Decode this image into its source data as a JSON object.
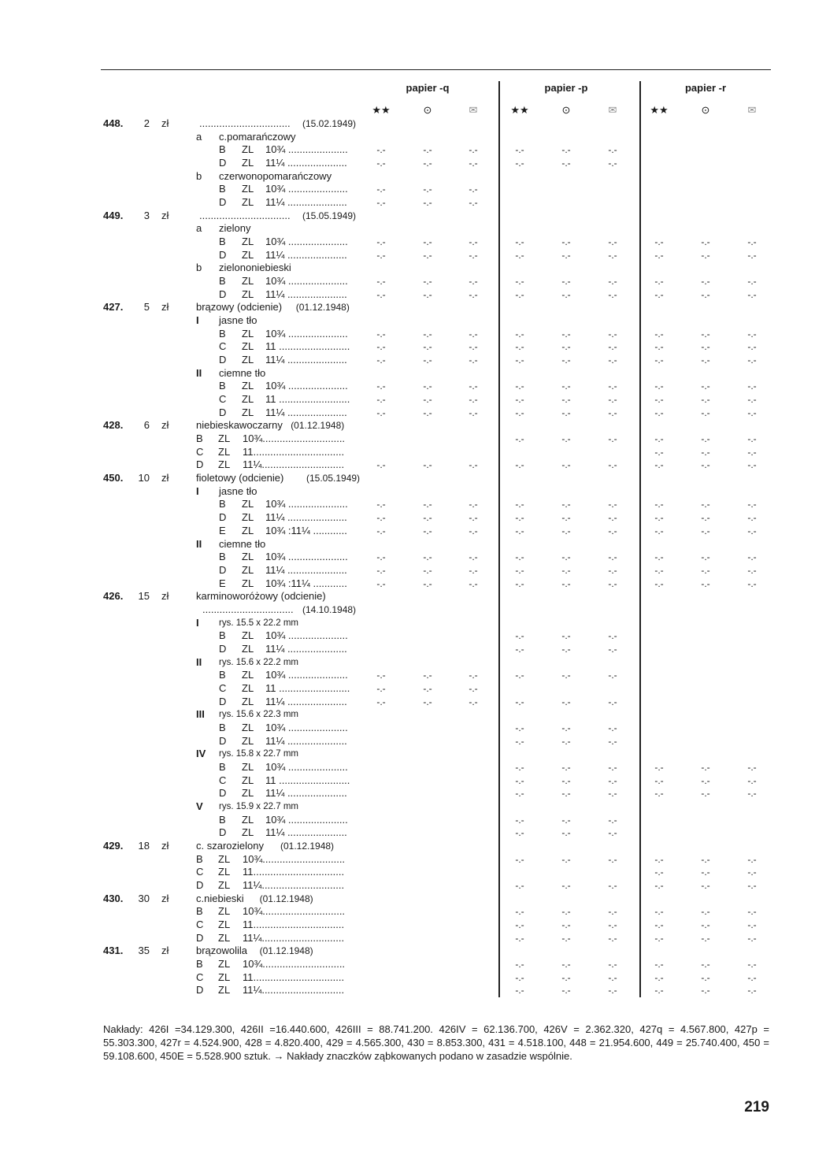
{
  "header": {
    "columns": [
      {
        "label": "papier -q"
      },
      {
        "label": "papier -p"
      },
      {
        "label": "papier -r"
      }
    ],
    "icons": [
      "mint-never-hinged-icon",
      "cancelled-icon",
      "cover-envelope-icon"
    ],
    "icon_glyphs": [
      "★★",
      "⊙",
      "✉"
    ]
  },
  "placeholder": "-.-",
  "rows": [
    {
      "t": "main",
      "num": "448.",
      "val": "2",
      "unit": "zł",
      "text": "",
      "dots": "................................",
      "date": "(15.02.1949)",
      "m": ""
    },
    {
      "t": "sub",
      "l": "a",
      "label": "c.pomarańczowy",
      "m": ""
    },
    {
      "t": "perf",
      "l": "B",
      "z": "ZL",
      "p": "10¾ .....................",
      "m": "qp"
    },
    {
      "t": "perf",
      "l": "D",
      "z": "ZL",
      "p": "11¼ .....................",
      "m": "qp"
    },
    {
      "t": "sub",
      "l": "b",
      "label": "czerwonopomarańczowy",
      "m": ""
    },
    {
      "t": "perf",
      "l": "B",
      "z": "ZL",
      "p": "10¾ .....................",
      "m": "q"
    },
    {
      "t": "perf",
      "l": "D",
      "z": "ZL",
      "p": "11¼ .....................",
      "m": "q"
    },
    {
      "t": "main",
      "num": "449.",
      "val": "3",
      "unit": "zł",
      "text": "",
      "dots": "................................",
      "date": "(15.05.1949)",
      "m": ""
    },
    {
      "t": "sub",
      "l": "a",
      "label": "zielony",
      "m": ""
    },
    {
      "t": "perf",
      "l": "B",
      "z": "ZL",
      "p": "10¾ .....................",
      "m": "qpr"
    },
    {
      "t": "perf",
      "l": "D",
      "z": "ZL",
      "p": "11¼ .....................",
      "m": "qpr"
    },
    {
      "t": "sub",
      "l": "b",
      "label": "zielononiebieski",
      "m": ""
    },
    {
      "t": "perf",
      "l": "B",
      "z": "ZL",
      "p": "10¾ .....................",
      "m": "qpr"
    },
    {
      "t": "perf",
      "l": "D",
      "z": "ZL",
      "p": "11¼ .....................",
      "m": "qpr"
    },
    {
      "t": "main",
      "num": "427.",
      "val": "5",
      "unit": "zł",
      "text": "brązowy (odcienie)",
      "dots": "",
      "date": "(01.12.1948)",
      "m": ""
    },
    {
      "t": "sub",
      "l": "I",
      "bold": true,
      "label": "jasne tło",
      "m": ""
    },
    {
      "t": "perf",
      "l": "B",
      "z": "ZL",
      "p": "10¾ .....................",
      "m": "qpr"
    },
    {
      "t": "perf",
      "l": "C",
      "z": "ZL",
      "p": "11 .........................",
      "m": "qpr"
    },
    {
      "t": "perf",
      "l": "D",
      "z": "ZL",
      "p": "11¼ .....................",
      "m": "qpr"
    },
    {
      "t": "sub",
      "l": "II",
      "bold": true,
      "label": "ciemne tło",
      "m": ""
    },
    {
      "t": "perf",
      "l": "B",
      "z": "ZL",
      "p": "10¾ .....................",
      "m": "qpr"
    },
    {
      "t": "perf",
      "l": "C",
      "z": "ZL",
      "p": "11 .........................",
      "m": "qpr"
    },
    {
      "t": "perf",
      "l": "D",
      "z": "ZL",
      "p": "11¼ .....................",
      "m": "qpr"
    },
    {
      "t": "main",
      "num": "428.",
      "val": "6",
      "unit": "zł",
      "text": "niebieskawoczarny",
      "dots": "",
      "date": "(01.12.1948)",
      "m": ""
    },
    {
      "t": "perf2",
      "l": "B",
      "z": "ZL",
      "p": "10¾.............................",
      "m": "pr"
    },
    {
      "t": "perf2",
      "l": "C",
      "z": "ZL",
      "p": "11................................",
      "m": "r"
    },
    {
      "t": "perf2",
      "l": "D",
      "z": "ZL",
      "p": "11¼.............................",
      "m": "qpr"
    },
    {
      "t": "main",
      "num": "450.",
      "val": "10",
      "unit": "zł",
      "text": "fioletowy (odcienie)",
      "dots": "",
      "date": "(15.05.1949)",
      "m": ""
    },
    {
      "t": "sub",
      "l": "I",
      "bold": true,
      "label": "jasne tło",
      "m": ""
    },
    {
      "t": "perf",
      "l": "B",
      "z": "ZL",
      "p": "10¾ .....................",
      "m": "qpr"
    },
    {
      "t": "perf",
      "l": "D",
      "z": "ZL",
      "p": "11¼ .....................",
      "m": "qpr"
    },
    {
      "t": "perf",
      "l": "E",
      "z": "ZL",
      "p": "10¾ :11¼ ............",
      "m": "qpr"
    },
    {
      "t": "sub",
      "l": "II",
      "bold": true,
      "label": "ciemne tło",
      "m": ""
    },
    {
      "t": "perf",
      "l": "B",
      "z": "ZL",
      "p": "10¾ .....................",
      "m": "qpr"
    },
    {
      "t": "perf",
      "l": "D",
      "z": "ZL",
      "p": "11¼ .....................",
      "m": "qpr"
    },
    {
      "t": "perf",
      "l": "E",
      "z": "ZL",
      "p": "10¾ :11¼ ............",
      "m": "qpr"
    },
    {
      "t": "main",
      "num": "426.",
      "val": "15",
      "unit": "zł",
      "text": "karminoworóżowy (odcienie)",
      "dots": "",
      "date": "",
      "m": ""
    },
    {
      "t": "date",
      "dots": "................................",
      "date": "(14.10.1948)",
      "m": ""
    },
    {
      "t": "sub",
      "l": "I",
      "bold": true,
      "small": true,
      "label": "rys. 15.5 x 22.2 mm",
      "m": ""
    },
    {
      "t": "perf",
      "l": "B",
      "z": "ZL",
      "p": "10¾ .....................",
      "m": "p"
    },
    {
      "t": "perf",
      "l": "D",
      "z": "ZL",
      "p": "11¼ .....................",
      "m": "p"
    },
    {
      "t": "sub",
      "l": "II",
      "bold": true,
      "small": true,
      "label": "rys. 15.6 x 22.2 mm",
      "m": ""
    },
    {
      "t": "perf",
      "l": "B",
      "z": "ZL",
      "p": "10¾ .....................",
      "m": "qp"
    },
    {
      "t": "perf",
      "l": "C",
      "z": "ZL",
      "p": "11 .........................",
      "m": "q"
    },
    {
      "t": "perf",
      "l": "D",
      "z": "ZL",
      "p": "11¼ .....................",
      "m": "qp"
    },
    {
      "t": "sub",
      "l": "III",
      "bold": true,
      "small": true,
      "label": "rys. 15.6 x 22.3 mm",
      "m": ""
    },
    {
      "t": "perf",
      "l": "B",
      "z": "ZL",
      "p": "10¾ .....................",
      "m": "p"
    },
    {
      "t": "perf",
      "l": "D",
      "z": "ZL",
      "p": "11¼ .....................",
      "m": "p"
    },
    {
      "t": "sub",
      "l": "IV",
      "bold": true,
      "small": true,
      "label": "rys. 15.8 x 22.7 mm",
      "m": ""
    },
    {
      "t": "perf",
      "l": "B",
      "z": "ZL",
      "p": "10¾ .....................",
      "m": "pr"
    },
    {
      "t": "perf",
      "l": "C",
      "z": "ZL",
      "p": "11 .........................",
      "m": "pr"
    },
    {
      "t": "perf",
      "l": "D",
      "z": "ZL",
      "p": "11¼ .....................",
      "m": "pr"
    },
    {
      "t": "sub",
      "l": "V",
      "bold": true,
      "small": true,
      "label": "rys. 15.9 x 22.7 mm",
      "m": ""
    },
    {
      "t": "perf",
      "l": "B",
      "z": "ZL",
      "p": "10¾ .....................",
      "m": "p"
    },
    {
      "t": "perf",
      "l": "D",
      "z": "ZL",
      "p": "11¼ .....................",
      "m": "p"
    },
    {
      "t": "main",
      "num": "429.",
      "val": "18",
      "unit": "zł",
      "text": "c. szarozielony",
      "dots": "",
      "date": "(01.12.1948)",
      "m": ""
    },
    {
      "t": "perf2",
      "l": "B",
      "z": "ZL",
      "p": "10¾.............................",
      "m": "pr"
    },
    {
      "t": "perf2",
      "l": "C",
      "z": "ZL",
      "p": "11................................",
      "m": "r"
    },
    {
      "t": "perf2",
      "l": "D",
      "z": "ZL",
      "p": "11¼.............................",
      "m": "pr"
    },
    {
      "t": "main",
      "num": "430.",
      "val": "30",
      "unit": "zł",
      "text": "c.niebieski",
      "dots": "",
      "date": "(01.12.1948)",
      "m": ""
    },
    {
      "t": "perf2",
      "l": "B",
      "z": "ZL",
      "p": "10¾.............................",
      "m": "pr"
    },
    {
      "t": "perf2",
      "l": "C",
      "z": "ZL",
      "p": "11................................",
      "m": "pr"
    },
    {
      "t": "perf2",
      "l": "D",
      "z": "ZL",
      "p": "11¼.............................",
      "m": "pr"
    },
    {
      "t": "main",
      "num": "431.",
      "val": "35",
      "unit": "zł",
      "text": "brązowolila",
      "dots": "",
      "date": "(01.12.1948)",
      "m": ""
    },
    {
      "t": "perf2",
      "l": "B",
      "z": "ZL",
      "p": "10¾.............................",
      "m": "pr"
    },
    {
      "t": "perf2",
      "l": "C",
      "z": "ZL",
      "p": "11................................",
      "m": "pr"
    },
    {
      "t": "perf2",
      "l": "D",
      "z": "ZL",
      "p": "11¼.............................",
      "m": "pr"
    }
  ],
  "footnote": "Nakłady: 426I =34.129.300, 426II =16.440.600, 426III = 88.741.200. 426IV = 62.136.700, 426V = 2.362.320, 427q = 4.567.800, 427p = 55.303.300, 427r = 4.524.900, 428 = 4.820.400, 429 = 4.565.300, 430 = 8.853.300, 431 = 4.518.100, 448 = 21.954.600, 449 = 25.740.400, 450 = 59.108.600, 450E = 5.528.900 sztuk. → Nakłady znaczków ząbkowanych podano w zasadzie wspólnie.",
  "page_number": "219"
}
